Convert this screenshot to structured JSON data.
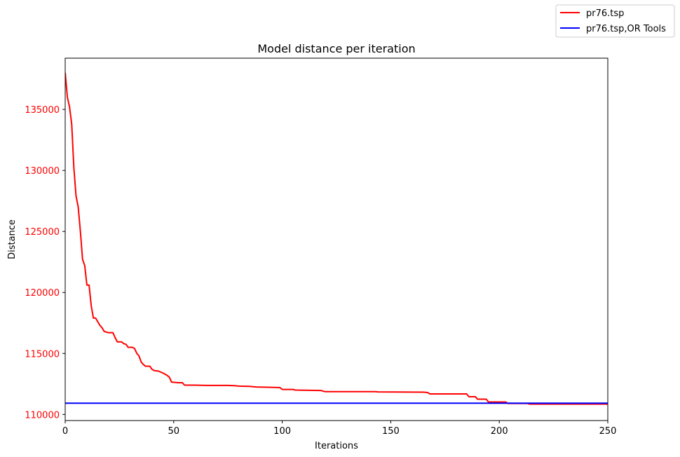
{
  "chart_data": {
    "type": "line",
    "title": "Model distance per iteration",
    "xlabel": "Iterations",
    "ylabel": "Distance",
    "xlim": [
      0,
      250
    ],
    "ylim": [
      109500,
      139200
    ],
    "xticks": [
      0,
      50,
      100,
      150,
      200,
      250
    ],
    "yticks": [
      110000,
      115000,
      120000,
      125000,
      130000,
      135000
    ],
    "ytick_color": "#ff0000",
    "grid": false,
    "legend_placement": "top-right (outside axes)",
    "series": [
      {
        "name": "pr76.tsp",
        "color": "#ff0000",
        "points": [
          [
            0,
            138000
          ],
          [
            1,
            136000
          ],
          [
            2,
            135200
          ],
          [
            3,
            133800
          ],
          [
            4,
            130200
          ],
          [
            5,
            127900
          ],
          [
            6,
            127000
          ],
          [
            7,
            125000
          ],
          [
            8,
            122700
          ],
          [
            9,
            122200
          ],
          [
            10,
            120600
          ],
          [
            11,
            120600
          ],
          [
            12,
            118900
          ],
          [
            13,
            117900
          ],
          [
            14,
            117900
          ],
          [
            15,
            117600
          ],
          [
            16,
            117300
          ],
          [
            17,
            117100
          ],
          [
            18,
            116800
          ],
          [
            20,
            116700
          ],
          [
            22,
            116700
          ],
          [
            23,
            116300
          ],
          [
            24,
            115950
          ],
          [
            26,
            115950
          ],
          [
            27,
            115800
          ],
          [
            28,
            115750
          ],
          [
            29,
            115500
          ],
          [
            31,
            115500
          ],
          [
            32,
            115400
          ],
          [
            33,
            115000
          ],
          [
            34,
            114800
          ],
          [
            35,
            114300
          ],
          [
            36,
            114100
          ],
          [
            37,
            113950
          ],
          [
            39,
            113950
          ],
          [
            40,
            113700
          ],
          [
            41,
            113600
          ],
          [
            43,
            113550
          ],
          [
            45,
            113400
          ],
          [
            47,
            113200
          ],
          [
            48,
            113050
          ],
          [
            49,
            112650
          ],
          [
            52,
            112600
          ],
          [
            54,
            112600
          ],
          [
            55,
            112400
          ],
          [
            60,
            112400
          ],
          [
            65,
            112380
          ],
          [
            70,
            112380
          ],
          [
            75,
            112380
          ],
          [
            78,
            112360
          ],
          [
            80,
            112320
          ],
          [
            85,
            112300
          ],
          [
            88,
            112250
          ],
          [
            95,
            112220
          ],
          [
            99,
            112200
          ],
          [
            100,
            112050
          ],
          [
            105,
            112050
          ],
          [
            106,
            112000
          ],
          [
            115,
            111970
          ],
          [
            118,
            111960
          ],
          [
            119,
            111900
          ],
          [
            120,
            111870
          ],
          [
            143,
            111870
          ],
          [
            144,
            111850
          ],
          [
            165,
            111830
          ],
          [
            167,
            111800
          ],
          [
            168,
            111680
          ],
          [
            185,
            111680
          ],
          [
            186,
            111450
          ],
          [
            189,
            111450
          ],
          [
            190,
            111250
          ],
          [
            194,
            111250
          ],
          [
            195,
            111020
          ],
          [
            203,
            111020
          ],
          [
            204,
            110900
          ],
          [
            213,
            110900
          ],
          [
            214,
            110850
          ],
          [
            250,
            110850
          ]
        ]
      },
      {
        "name": "pr76.tsp,OR Tools",
        "color": "#0000ff",
        "points": [
          [
            0,
            110920
          ],
          [
            250,
            110920
          ]
        ]
      }
    ]
  }
}
